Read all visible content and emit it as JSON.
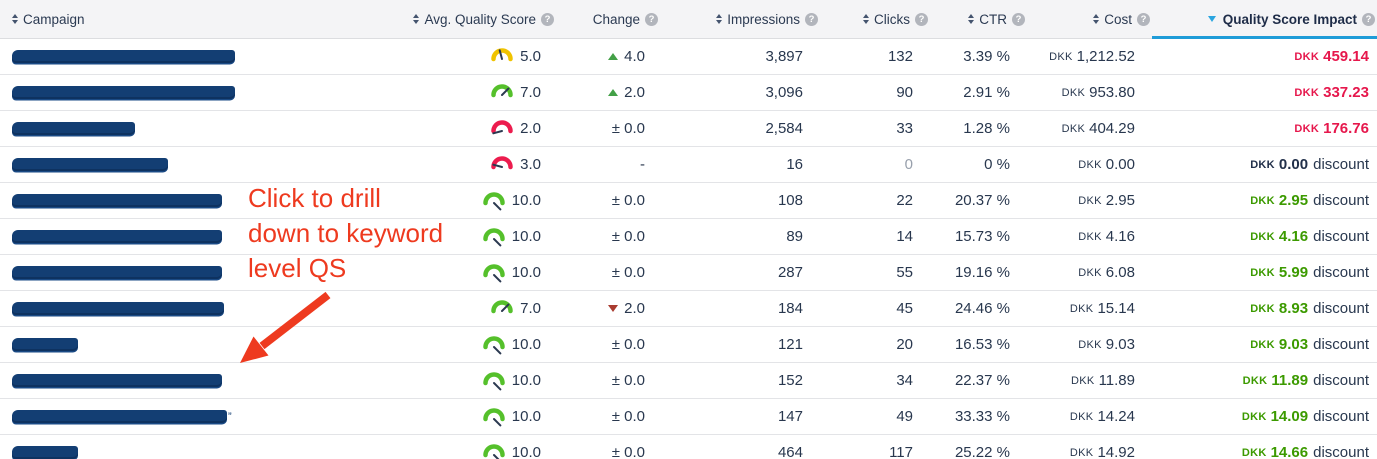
{
  "currency": "DKK",
  "discount_label": "discount",
  "icons": {
    "help_glyph": "?"
  },
  "colors": {
    "accent_blue": "#1f9cd8",
    "impact_red": "#e6174c",
    "impact_green": "#3c9a00",
    "gauge_green": "#55c02b",
    "gauge_yellow": "#f0c300",
    "gauge_red": "#ec1c4e",
    "change_up": "#43a047",
    "change_down": "#a93b30",
    "annotation_red": "#ee3a1f",
    "redaction_navy": "#133e73"
  },
  "header": {
    "columns": [
      {
        "key": "campaign",
        "label": "Campaign",
        "sortable": true,
        "help": false,
        "active": false,
        "align": "left"
      },
      {
        "key": "avg_quality_score",
        "label": "Avg. Quality Score",
        "sortable": true,
        "help": true,
        "active": false,
        "align": "right"
      },
      {
        "key": "change",
        "label": "Change",
        "sortable": false,
        "help": true,
        "active": false,
        "align": "right"
      },
      {
        "key": "impressions",
        "label": "Impressions",
        "sortable": true,
        "help": true,
        "active": false,
        "align": "right"
      },
      {
        "key": "clicks",
        "label": "Clicks",
        "sortable": true,
        "help": true,
        "active": false,
        "align": "right"
      },
      {
        "key": "ctr",
        "label": "CTR",
        "sortable": true,
        "help": true,
        "active": false,
        "align": "right"
      },
      {
        "key": "cost",
        "label": "Cost",
        "sortable": true,
        "help": true,
        "active": false,
        "align": "right"
      },
      {
        "key": "quality_score_impact",
        "label": "Quality Score Impact",
        "sortable": false,
        "help": true,
        "active": true,
        "sort_dir": "desc",
        "align": "right"
      }
    ]
  },
  "rows": [
    {
      "campaign_redacted_width": 223,
      "score": "5.0",
      "gauge": "yellow",
      "change": {
        "dir": "up",
        "text": "4.0"
      },
      "impressions": "3,897",
      "clicks": "132",
      "clicks_muted": false,
      "ctr": "3.39 %",
      "cost": "1,212.52",
      "impact": {
        "text": "459.14",
        "tone": "red",
        "discount": false
      }
    },
    {
      "campaign_redacted_width": 223,
      "score": "7.0",
      "gauge": "green",
      "change": {
        "dir": "up",
        "text": "2.0"
      },
      "impressions": "3,096",
      "clicks": "90",
      "clicks_muted": false,
      "ctr": "2.91 %",
      "cost": "953.80",
      "impact": {
        "text": "337.23",
        "tone": "red",
        "discount": false
      }
    },
    {
      "campaign_redacted_width": 123,
      "score": "2.0",
      "gauge": "red",
      "change": {
        "dir": "zero",
        "text": "± 0.0"
      },
      "impressions": "2,584",
      "clicks": "33",
      "clicks_muted": false,
      "ctr": "1.28 %",
      "cost": "404.29",
      "impact": {
        "text": "176.76",
        "tone": "red",
        "discount": false
      }
    },
    {
      "campaign_redacted_width": 156,
      "score": "3.0",
      "gauge": "red",
      "change": {
        "dir": "dash",
        "text": "-"
      },
      "impressions": "16",
      "clicks": "0",
      "clicks_muted": true,
      "ctr": "0 %",
      "cost": "0.00",
      "impact": {
        "text": "0.00",
        "tone": "dark",
        "discount": true
      }
    },
    {
      "campaign_redacted_width": 210,
      "score": "10.0",
      "gauge": "green",
      "change": {
        "dir": "zero",
        "text": "± 0.0"
      },
      "impressions": "108",
      "clicks": "22",
      "clicks_muted": false,
      "ctr": "20.37 %",
      "cost": "2.95",
      "impact": {
        "text": "2.95",
        "tone": "green",
        "discount": true
      }
    },
    {
      "campaign_redacted_width": 210,
      "score": "10.0",
      "gauge": "green",
      "change": {
        "dir": "zero",
        "text": "± 0.0"
      },
      "impressions": "89",
      "clicks": "14",
      "clicks_muted": false,
      "ctr": "15.73 %",
      "cost": "4.16",
      "impact": {
        "text": "4.16",
        "tone": "green",
        "discount": true
      }
    },
    {
      "campaign_redacted_width": 210,
      "score": "10.0",
      "gauge": "green",
      "change": {
        "dir": "zero",
        "text": "± 0.0"
      },
      "impressions": "287",
      "clicks": "55",
      "clicks_muted": false,
      "ctr": "19.16 %",
      "cost": "6.08",
      "impact": {
        "text": "5.99",
        "tone": "green",
        "discount": true
      }
    },
    {
      "campaign_redacted_width": 212,
      "score": "7.0",
      "gauge": "green",
      "change": {
        "dir": "down",
        "text": "2.0"
      },
      "impressions": "184",
      "clicks": "45",
      "clicks_muted": false,
      "ctr": "24.46 %",
      "cost": "15.14",
      "impact": {
        "text": "8.93",
        "tone": "green",
        "discount": true
      }
    },
    {
      "campaign_redacted_width": 66,
      "score": "10.0",
      "gauge": "green",
      "change": {
        "dir": "zero",
        "text": "± 0.0"
      },
      "impressions": "121",
      "clicks": "20",
      "clicks_muted": false,
      "ctr": "16.53 %",
      "cost": "9.03",
      "impact": {
        "text": "9.03",
        "tone": "green",
        "discount": true
      }
    },
    {
      "campaign_redacted_width": 210,
      "score": "10.0",
      "gauge": "green",
      "change": {
        "dir": "zero",
        "text": "± 0.0"
      },
      "impressions": "152",
      "clicks": "34",
      "clicks_muted": false,
      "ctr": "22.37 %",
      "cost": "11.89",
      "impact": {
        "text": "11.89",
        "tone": "green",
        "discount": true
      }
    },
    {
      "campaign_redacted_width": 215,
      "campaign_suffix": "”",
      "score": "10.0",
      "gauge": "green",
      "change": {
        "dir": "zero",
        "text": "± 0.0"
      },
      "impressions": "147",
      "clicks": "49",
      "clicks_muted": false,
      "ctr": "33.33 %",
      "cost": "14.24",
      "impact": {
        "text": "14.09",
        "tone": "green",
        "discount": true
      }
    },
    {
      "campaign_redacted_width": 66,
      "score": "10.0",
      "gauge": "green",
      "change": {
        "dir": "zero",
        "text": "± 0.0"
      },
      "impressions": "464",
      "clicks": "117",
      "clicks_muted": false,
      "ctr": "25.22 %",
      "cost": "14.92",
      "impact": {
        "text": "14.66",
        "tone": "green",
        "discount": true
      }
    }
  ],
  "annotation": {
    "text": "Click to drill down to keyword level QS",
    "lines": [
      "Click to drill",
      "down to keyword",
      "level QS"
    ]
  }
}
